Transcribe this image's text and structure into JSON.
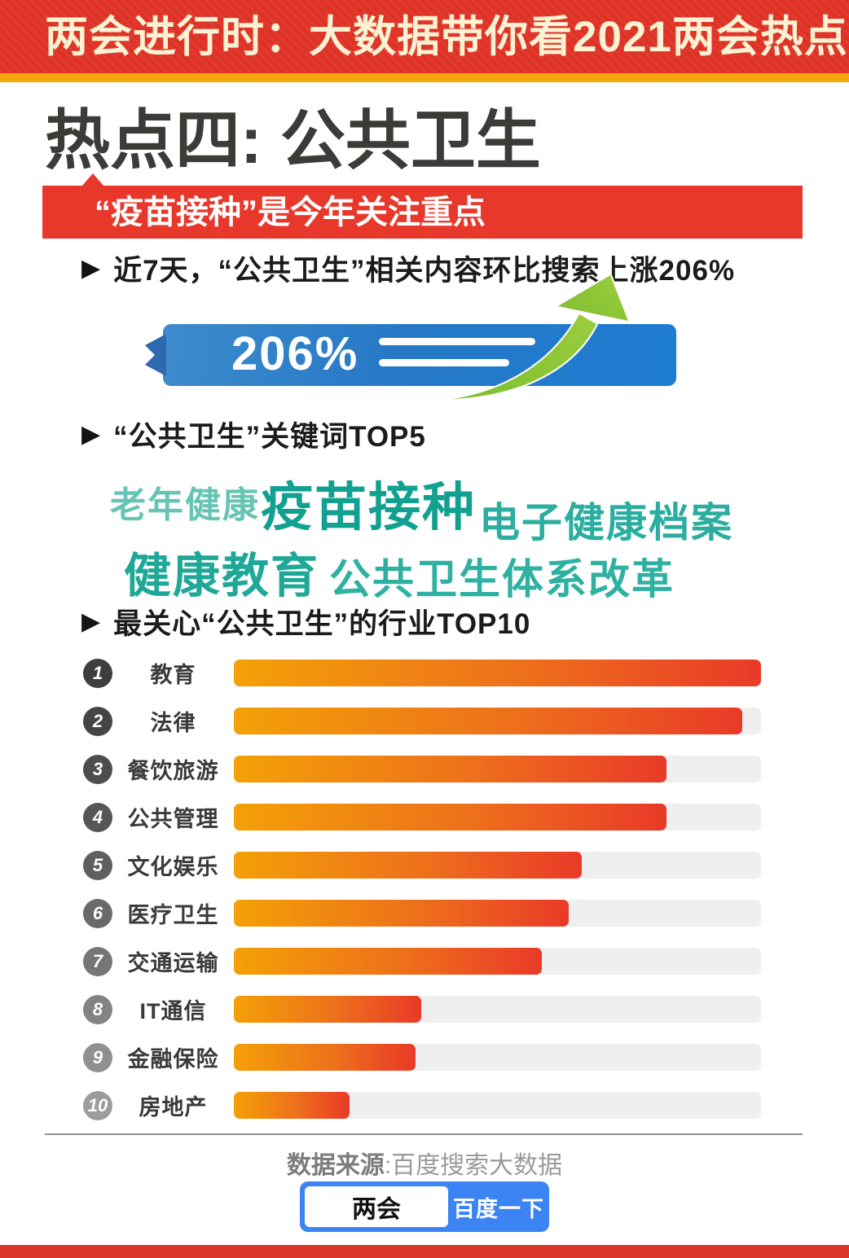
{
  "header": {
    "title": "两会进行时：大数据带你看2021两会热点"
  },
  "page_title": "热点四: 公共卫生",
  "banner": {
    "text": "“疫苗接种”是今年关注重点"
  },
  "sections": {
    "search_rise": {
      "bullet": "近7天，“公共卫生”相关内容环比搜索上涨206%",
      "ribbon_value": "206%"
    },
    "keywords": {
      "bullet": "“公共卫生”关键词TOP5",
      "items": [
        {
          "text": "老年健康",
          "color": "#67C4B3"
        },
        {
          "text": "疫苗接种",
          "color": "#12A191"
        },
        {
          "text": "电子健康档案",
          "color": "#2BAEA0"
        },
        {
          "text": "健康教育",
          "color": "#1FA897"
        },
        {
          "text": "公共卫生体系改革",
          "color": "#2FB1A2"
        }
      ]
    },
    "industries": {
      "bullet": "最关心“公共卫生”的行业TOP10",
      "rows": [
        {
          "rank": "1",
          "label": "教育",
          "value": 100,
          "badge_color": "#3E3E3C"
        },
        {
          "rank": "2",
          "label": "法律",
          "value": 96.5,
          "badge_color": "#454543"
        },
        {
          "rank": "3",
          "label": "餐饮旅游",
          "value": 82,
          "badge_color": "#4D4D4B"
        },
        {
          "rank": "4",
          "label": "公共管理",
          "value": 82,
          "badge_color": "#565654"
        },
        {
          "rank": "5",
          "label": "文化娱乐",
          "value": 66,
          "badge_color": "#5F5F5D"
        },
        {
          "rank": "6",
          "label": "医疗卫生",
          "value": 63.5,
          "badge_color": "#6A6A68"
        },
        {
          "rank": "7",
          "label": "交通运输",
          "value": 58.5,
          "badge_color": "#767674"
        },
        {
          "rank": "8",
          "label": "IT通信",
          "value": 35.5,
          "badge_color": "#838381"
        },
        {
          "rank": "9",
          "label": "金融保险",
          "value": 34.5,
          "badge_color": "#90908E"
        },
        {
          "rank": "10",
          "label": "房地产",
          "value": 22,
          "badge_color": "#9C9C9A"
        }
      ]
    }
  },
  "chart_data": {
    "type": "bar",
    "orientation": "horizontal",
    "title": "最关心“公共卫生”的行业TOP10",
    "categories": [
      "教育",
      "法律",
      "餐饮旅游",
      "公共管理",
      "文化娱乐",
      "医疗卫生",
      "交通运输",
      "IT通信",
      "金融保险",
      "房地产"
    ],
    "values": [
      100,
      96.5,
      82,
      82,
      66,
      63.5,
      58.5,
      35.5,
      34.5,
      22
    ],
    "value_note": "relative bar length, % of longest bar (教育 = 100), estimated from pixels; no numeric axis shown",
    "annotation": "近7天“公共卫生”相关内容环比搜索上涨206%",
    "keyword_top5": [
      "疫苗接种",
      "老年健康",
      "电子健康档案",
      "健康教育",
      "公共卫生体系改革"
    ],
    "legend": "none",
    "grid": false
  },
  "footer": {
    "source_label": "数据来源",
    "source_value": ":百度搜索大数据",
    "search_query": "两会",
    "search_button": "百度一下"
  },
  "colors": {
    "header_red": "#DF3226",
    "header_text_cream": "#FAF2D2",
    "orange_stripe": "#F6A70B",
    "banner_red": "#E8382C",
    "ribbon_blue_left": "#3E8BCC",
    "ribbon_blue_right": "#1E7CD2",
    "ribbon_tail_blue": "#2C69AE",
    "arrow_green": "#8CC63F",
    "bar_gradient_start": "#F4A007",
    "bar_gradient_end": "#E93A28",
    "bar_track": "#EFEFEF",
    "baidu_blue": "#3C83F3",
    "bottom_bar_red": "#DA3327",
    "title_dark": "#3B3B38"
  }
}
